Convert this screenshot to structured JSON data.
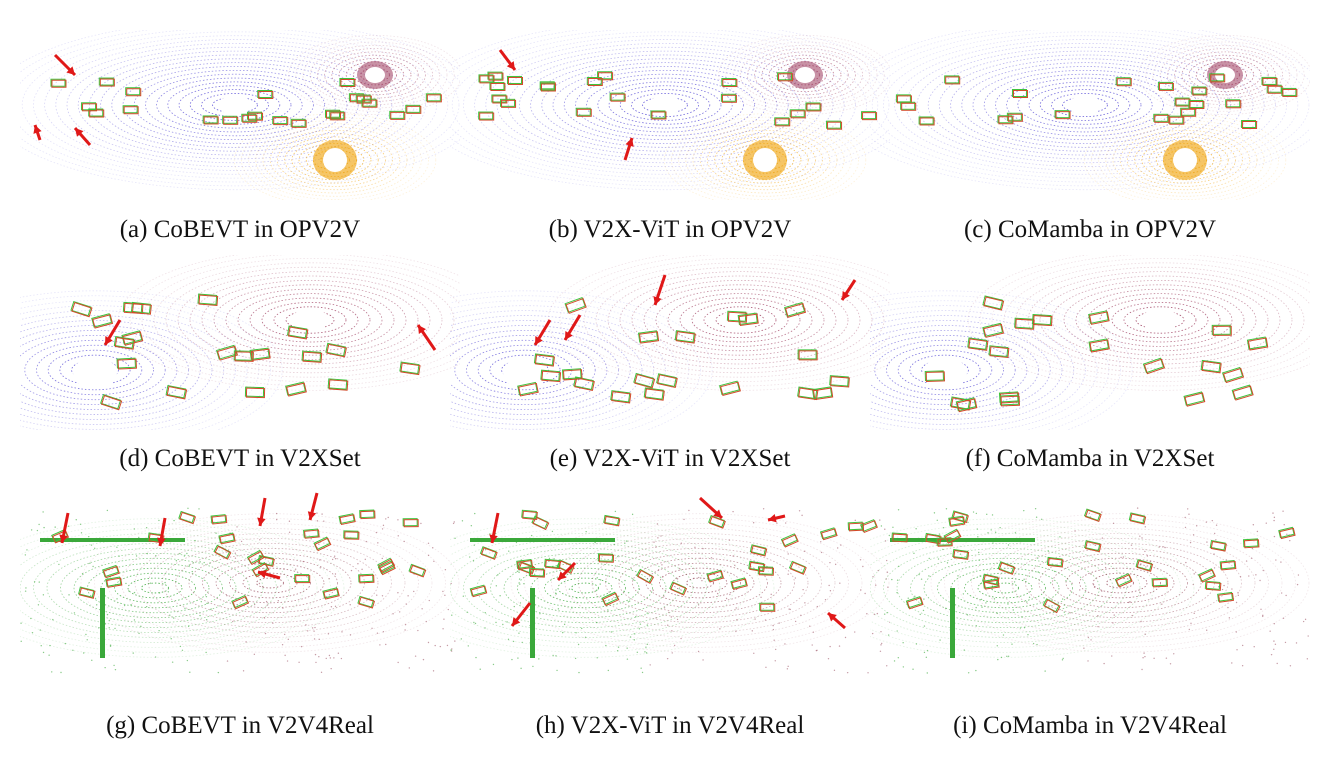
{
  "figure": {
    "panels": [
      {
        "id": "a",
        "caption": "(a) CoBEVT in OPV2V",
        "dataset": "OPV2V",
        "method": "CoBEVT"
      },
      {
        "id": "b",
        "caption": "(b) V2X-ViT in OPV2V",
        "dataset": "OPV2V",
        "method": "V2X-ViT"
      },
      {
        "id": "c",
        "caption": "(c) CoMamba in OPV2V",
        "dataset": "OPV2V",
        "method": "CoMamba"
      },
      {
        "id": "d",
        "caption": "(d) CoBEVT in V2XSet",
        "dataset": "V2XSet",
        "method": "CoBEVT"
      },
      {
        "id": "e",
        "caption": "(e) V2X-ViT in V2XSet",
        "dataset": "V2XSet",
        "method": "V2X-ViT"
      },
      {
        "id": "f",
        "caption": "(f) CoMamba in V2XSet",
        "dataset": "V2XSet",
        "method": "CoMamba"
      },
      {
        "id": "g",
        "caption": "(g) CoBEVT in V2V4Real",
        "dataset": "V2V4Real",
        "method": "CoBEVT"
      },
      {
        "id": "h",
        "caption": "(h) V2X-ViT in V2V4Real",
        "dataset": "V2V4Real",
        "method": "V2X-ViT"
      },
      {
        "id": "i",
        "caption": "(i) CoMamba in V2V4Real",
        "dataset": "V2V4Real",
        "method": "CoMamba"
      }
    ],
    "colors": {
      "ego_cloud": "#5a4fd6",
      "cav_cloud_maroon": "#9c3a5c",
      "cav_cloud_orange": "#f0a000",
      "real_cloud_green": "#3aa83a",
      "real_cloud_maroon": "#a05a6a",
      "gt_box": "#3cc43c",
      "pred_box": "#d24a2a",
      "error_arrow": "#e01818"
    }
  }
}
